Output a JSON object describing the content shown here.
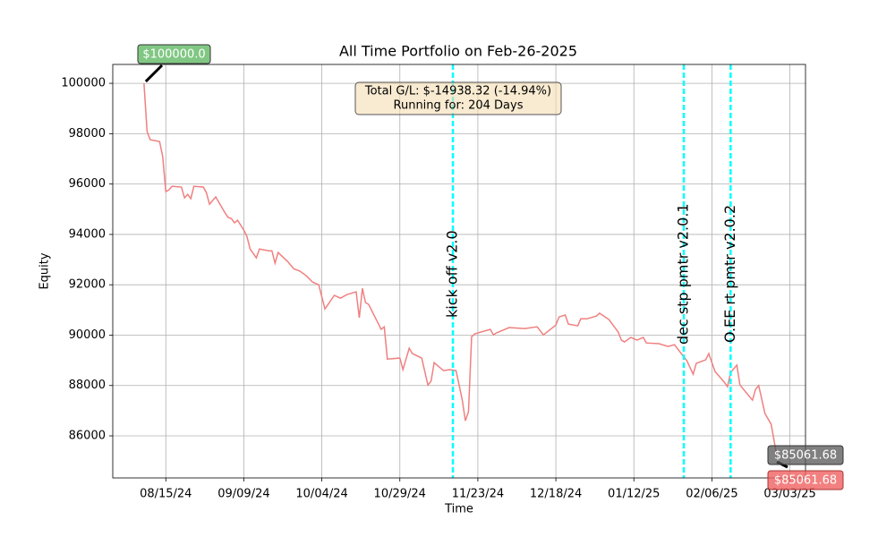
{
  "chart_data": {
    "type": "line",
    "title": "All Time Portfolio on Feb-26-2025",
    "xlabel": "Time",
    "ylabel": "Equity",
    "grid": true,
    "x": [
      "2024-08-08",
      "2024-08-09",
      "2024-08-10",
      "2024-08-13",
      "2024-08-14",
      "2024-08-15",
      "2024-08-16",
      "2024-08-17",
      "2024-08-20",
      "2024-08-21",
      "2024-08-22",
      "2024-08-23",
      "2024-08-24",
      "2024-08-27",
      "2024-08-28",
      "2024-08-29",
      "2024-08-31",
      "2024-09-03",
      "2024-09-04",
      "2024-09-05",
      "2024-09-06",
      "2024-09-07",
      "2024-09-09",
      "2024-09-10",
      "2024-09-11",
      "2024-09-13",
      "2024-09-14",
      "2024-09-17",
      "2024-09-18",
      "2024-09-19",
      "2024-09-20",
      "2024-09-23",
      "2024-09-25",
      "2024-09-27",
      "2024-09-29",
      "2024-10-01",
      "2024-10-03",
      "2024-10-05",
      "2024-10-08",
      "2024-10-10",
      "2024-10-12",
      "2024-10-15",
      "2024-10-16",
      "2024-10-17",
      "2024-10-18",
      "2024-10-19",
      "2024-10-22",
      "2024-10-23",
      "2024-10-24",
      "2024-10-25",
      "2024-10-29",
      "2024-10-30",
      "2024-11-01",
      "2024-11-02",
      "2024-11-05",
      "2024-11-07",
      "2024-11-08",
      "2024-11-09",
      "2024-11-12",
      "2024-11-14",
      "2024-11-16",
      "2024-11-17",
      "2024-11-18",
      "2024-11-19",
      "2024-11-20",
      "2024-11-21",
      "2024-11-22",
      "2024-11-27",
      "2024-11-28",
      "2024-11-29",
      "2024-12-03",
      "2024-12-08",
      "2024-12-12",
      "2024-12-14",
      "2024-12-18",
      "2024-12-19",
      "2024-12-21",
      "2024-12-22",
      "2024-12-25",
      "2024-12-26",
      "2024-12-28",
      "2024-12-31",
      "2025-01-01",
      "2025-01-04",
      "2025-01-07",
      "2025-01-08",
      "2025-01-09",
      "2025-01-11",
      "2025-01-13",
      "2025-01-15",
      "2025-01-16",
      "2025-01-20",
      "2025-01-23",
      "2025-01-25",
      "2025-01-27",
      "2025-01-29",
      "2025-01-31",
      "2025-02-01",
      "2025-02-04",
      "2025-02-05",
      "2025-02-06",
      "2025-02-07",
      "2025-02-10",
      "2025-02-11",
      "2025-02-12",
      "2025-02-14",
      "2025-02-15",
      "2025-02-19",
      "2025-02-20",
      "2025-02-21",
      "2025-02-23",
      "2025-02-25",
      "2025-02-27"
    ],
    "series": [
      {
        "name": "Equity",
        "color": "#f08080",
        "values": [
          100000,
          98080,
          97760,
          97690,
          97090,
          95700,
          95770,
          95910,
          95880,
          95450,
          95590,
          95420,
          95910,
          95880,
          95660,
          95200,
          95490,
          94850,
          94670,
          94630,
          94460,
          94560,
          94170,
          93920,
          93420,
          93070,
          93420,
          93350,
          93350,
          92860,
          93280,
          92930,
          92640,
          92540,
          92360,
          92110,
          92000,
          91040,
          91580,
          91470,
          91610,
          91720,
          90690,
          91860,
          91290,
          91220,
          90480,
          90230,
          90330,
          89050,
          89090,
          88630,
          89480,
          89270,
          89090,
          88020,
          88170,
          88910,
          88590,
          88630,
          88590,
          88020,
          87420,
          86600,
          86960,
          89940,
          90050,
          90230,
          90010,
          90090,
          90300,
          90260,
          90330,
          90010,
          90400,
          90720,
          90800,
          90440,
          90370,
          90650,
          90650,
          90760,
          90870,
          90620,
          90120,
          89800,
          89730,
          89910,
          89800,
          89910,
          89690,
          89660,
          89550,
          89620,
          89300,
          88980,
          88450,
          88880,
          89020,
          89270,
          88910,
          88560,
          88130,
          87950,
          88520,
          88810,
          88020,
          87420,
          87850,
          88000,
          86890,
          86460,
          85061.68
        ]
      }
    ],
    "xlim": [
      "2024-07-29",
      "2025-03-08"
    ],
    "xticks": [
      {
        "value": "2024-08-15",
        "label": "08/15/24"
      },
      {
        "value": "2024-09-09",
        "label": "09/09/24"
      },
      {
        "value": "2024-10-04",
        "label": "10/04/24"
      },
      {
        "value": "2024-10-29",
        "label": "10/29/24"
      },
      {
        "value": "2024-11-23",
        "label": "11/23/24"
      },
      {
        "value": "2024-12-18",
        "label": "12/18/24"
      },
      {
        "value": "2025-01-12",
        "label": "01/12/25"
      },
      {
        "value": "2025-02-06",
        "label": "02/06/25"
      },
      {
        "value": "2025-03-03",
        "label": "03/03/25"
      }
    ],
    "ylim": [
      84330,
      100750
    ],
    "yticks": [
      86000,
      88000,
      90000,
      92000,
      94000,
      96000,
      98000,
      100000
    ],
    "events": [
      {
        "x": "2024-11-15",
        "label": "kick off v2.0"
      },
      {
        "x": "2025-01-28",
        "label": "dec stp pmtr v2.0.1"
      },
      {
        "x": "2025-02-12",
        "label": "O.EE rt pmtr v2.0.2"
      }
    ],
    "event_color": "#00ffff",
    "summary": [
      "Total G/L: $-14938.32 (-14.94%)",
      "Running for: 204 Days"
    ],
    "start_label": "$100000.0",
    "end_labels": [
      "$85061.68",
      "$85061.68"
    ]
  }
}
